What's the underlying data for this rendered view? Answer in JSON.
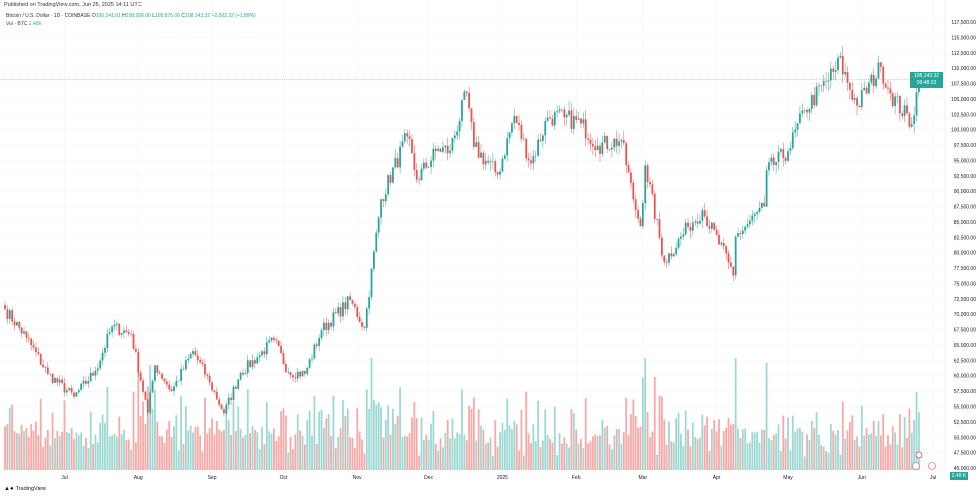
{
  "header": {
    "published": "Published on TradingView.com, Jun 25, 2025 14:11 UTC",
    "symbol": "Bitcoin / U.S. Dollar · 1D · COINBASE",
    "open_label": "O",
    "open": "106,141.01",
    "high_label": "H",
    "high": "108,206.00",
    "low_label": "L",
    "low": "105,875.00",
    "close_label": "C",
    "close": "108,143.32",
    "change": "+2,002.32 (+1.89%)",
    "vol_label": "Vol · BTC",
    "vol": "2.48K"
  },
  "price_tag": {
    "price": "108,143.32",
    "countdown": "09:48:33",
    "value": 108143.32
  },
  "volume_tag": "2.48 K",
  "footer": {
    "logo": "TradingView"
  },
  "colors": {
    "up": "#26a69a",
    "down": "#ef5350",
    "up_vol": "#9ed8d2",
    "down_vol": "#f7a9a7"
  },
  "chart_data": {
    "type": "candlestick",
    "title": "Bitcoin / U.S. Dollar · 1D · COINBASE",
    "ylim": [
      45000,
      117500
    ],
    "y_ticks": [
      "117,500.00",
      "115,000.00",
      "112,500.00",
      "110,000.00",
      "107,500.00",
      "105,000.00",
      "102,500.00",
      "100,000.00",
      "97,500.00",
      "95,000.00",
      "92,500.00",
      "90,000.00",
      "87,500.00",
      "85,000.00",
      "82,500.00",
      "80,000.00",
      "77,500.00",
      "75,000.00",
      "72,500.00",
      "70,000.00",
      "67,500.00",
      "65,000.00",
      "62,500.00",
      "60,000.00",
      "57,500.00",
      "55,000.00",
      "52,500.00",
      "50,000.00",
      "47,500.00",
      "45,000.00"
    ],
    "x_start": "2024-06-06",
    "x_ticks": [
      [
        "2024-07-01",
        "Jul"
      ],
      [
        "2024-08-01",
        "Aug"
      ],
      [
        "2024-09-01",
        "Sep"
      ],
      [
        "2024-10-01",
        "Oct"
      ],
      [
        "2024-11-01",
        "Nov"
      ],
      [
        "2024-12-01",
        "Dec"
      ],
      [
        "2025-01-01",
        "2025"
      ],
      [
        "2025-02-01",
        "Feb"
      ],
      [
        "2025-03-01",
        "Mar"
      ],
      [
        "2025-04-01",
        "Apr"
      ],
      [
        "2025-05-01",
        "May"
      ],
      [
        "2025-06-01",
        "Jun"
      ],
      [
        "2025-07-01",
        "Jul"
      ]
    ],
    "close_anchors": [
      [
        "2024-06-06",
        70800
      ],
      [
        "2024-06-15",
        66200
      ],
      [
        "2024-06-24",
        60300
      ],
      [
        "2024-07-05",
        56600
      ],
      [
        "2024-07-14",
        60800
      ],
      [
        "2024-07-21",
        68000
      ],
      [
        "2024-07-29",
        66800
      ],
      [
        "2024-08-05",
        54000
      ],
      [
        "2024-08-08",
        61700
      ],
      [
        "2024-08-15",
        57500
      ],
      [
        "2024-08-24",
        64000
      ],
      [
        "2024-08-31",
        58900
      ],
      [
        "2024-09-06",
        53900
      ],
      [
        "2024-09-13",
        60500
      ],
      [
        "2024-09-20",
        63000
      ],
      [
        "2024-09-27",
        65800
      ],
      [
        "2024-10-03",
        60600
      ],
      [
        "2024-10-10",
        60300
      ],
      [
        "2024-10-17",
        67400
      ],
      [
        "2024-10-29",
        72300
      ],
      [
        "2024-11-04",
        67800
      ],
      [
        "2024-11-11",
        88700
      ],
      [
        "2024-11-22",
        98900
      ],
      [
        "2024-11-26",
        91900
      ],
      [
        "2024-12-05",
        96900
      ],
      [
        "2024-12-10",
        96600
      ],
      [
        "2024-12-17",
        106000
      ],
      [
        "2024-12-20",
        97200
      ],
      [
        "2024-12-30",
        92700
      ],
      [
        "2025-01-06",
        102200
      ],
      [
        "2025-01-13",
        94500
      ],
      [
        "2025-01-20",
        102000
      ],
      [
        "2025-01-27",
        102000
      ],
      [
        "2025-02-03",
        101000
      ],
      [
        "2025-02-10",
        97400
      ],
      [
        "2025-02-20",
        98300
      ],
      [
        "2025-02-25",
        88700
      ],
      [
        "2025-02-28",
        84300
      ],
      [
        "2025-03-02",
        94200
      ],
      [
        "2025-03-10",
        78500
      ],
      [
        "2025-03-20",
        84200
      ],
      [
        "2025-03-26",
        86900
      ],
      [
        "2025-04-06",
        78400
      ],
      [
        "2025-04-08",
        76300
      ],
      [
        "2025-04-09",
        82600
      ],
      [
        "2025-04-21",
        87500
      ],
      [
        "2025-04-22",
        93400
      ],
      [
        "2025-05-01",
        96500
      ],
      [
        "2025-05-08",
        103200
      ],
      [
        "2025-05-21",
        109700
      ],
      [
        "2025-05-22",
        111700
      ],
      [
        "2025-05-30",
        103900
      ],
      [
        "2025-06-09",
        110200
      ],
      [
        "2025-06-13",
        105900
      ],
      [
        "2025-06-22",
        100900
      ],
      [
        "2025-06-24",
        106100
      ],
      [
        "2025-06-25",
        108143
      ]
    ]
  }
}
